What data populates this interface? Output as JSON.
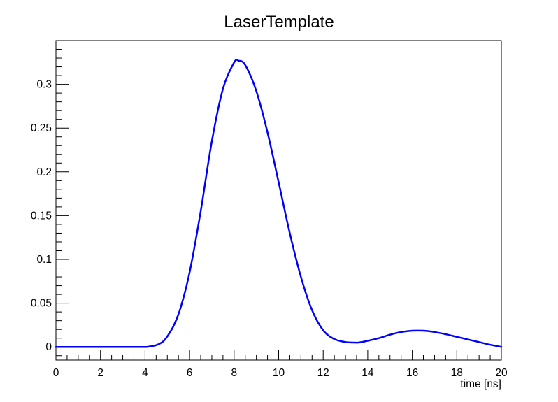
{
  "chart_data": {
    "type": "line",
    "title": "LaserTemplate",
    "xlabel": "time [ns]",
    "ylabel": "",
    "xlim": [
      0,
      20
    ],
    "ylim": [
      -0.015,
      0.35
    ],
    "grid": false,
    "x_ticks": [
      0,
      2,
      4,
      6,
      8,
      10,
      12,
      14,
      16,
      18,
      20
    ],
    "x_tick_labels": [
      "0",
      "2",
      "4",
      "6",
      "8",
      "10",
      "12",
      "14",
      "16",
      "18",
      "20"
    ],
    "y_ticks": [
      0,
      0.05,
      0.1,
      0.15,
      0.2,
      0.25,
      0.3
    ],
    "y_tick_labels": [
      "0",
      "0.05",
      "0.1",
      "0.15",
      "0.2",
      "0.25",
      "0.3"
    ],
    "series": [
      {
        "color": "#0000ff",
        "x": [
          0,
          1,
          2,
          3,
          4,
          4.2,
          4.5,
          4.8,
          5.0,
          5.3,
          5.6,
          6.0,
          6.5,
          7.0,
          7.5,
          8.0,
          8.2,
          8.5,
          9.0,
          9.5,
          10.0,
          10.5,
          11.0,
          11.5,
          12.0,
          12.5,
          13.0,
          13.3,
          13.6,
          14.0,
          14.5,
          15.0,
          15.5,
          16.0,
          16.5,
          17.0,
          17.5,
          18.0,
          18.5,
          19.0,
          19.5,
          20.0
        ],
        "y": [
          0,
          0,
          0,
          0,
          0,
          0.0005,
          0.002,
          0.006,
          0.012,
          0.025,
          0.045,
          0.085,
          0.155,
          0.235,
          0.295,
          0.325,
          0.327,
          0.322,
          0.292,
          0.245,
          0.188,
          0.13,
          0.08,
          0.042,
          0.019,
          0.009,
          0.0055,
          0.005,
          0.005,
          0.007,
          0.01,
          0.014,
          0.017,
          0.0185,
          0.0185,
          0.017,
          0.0145,
          0.0115,
          0.0085,
          0.0055,
          0.0025,
          0.0
        ]
      }
    ]
  }
}
